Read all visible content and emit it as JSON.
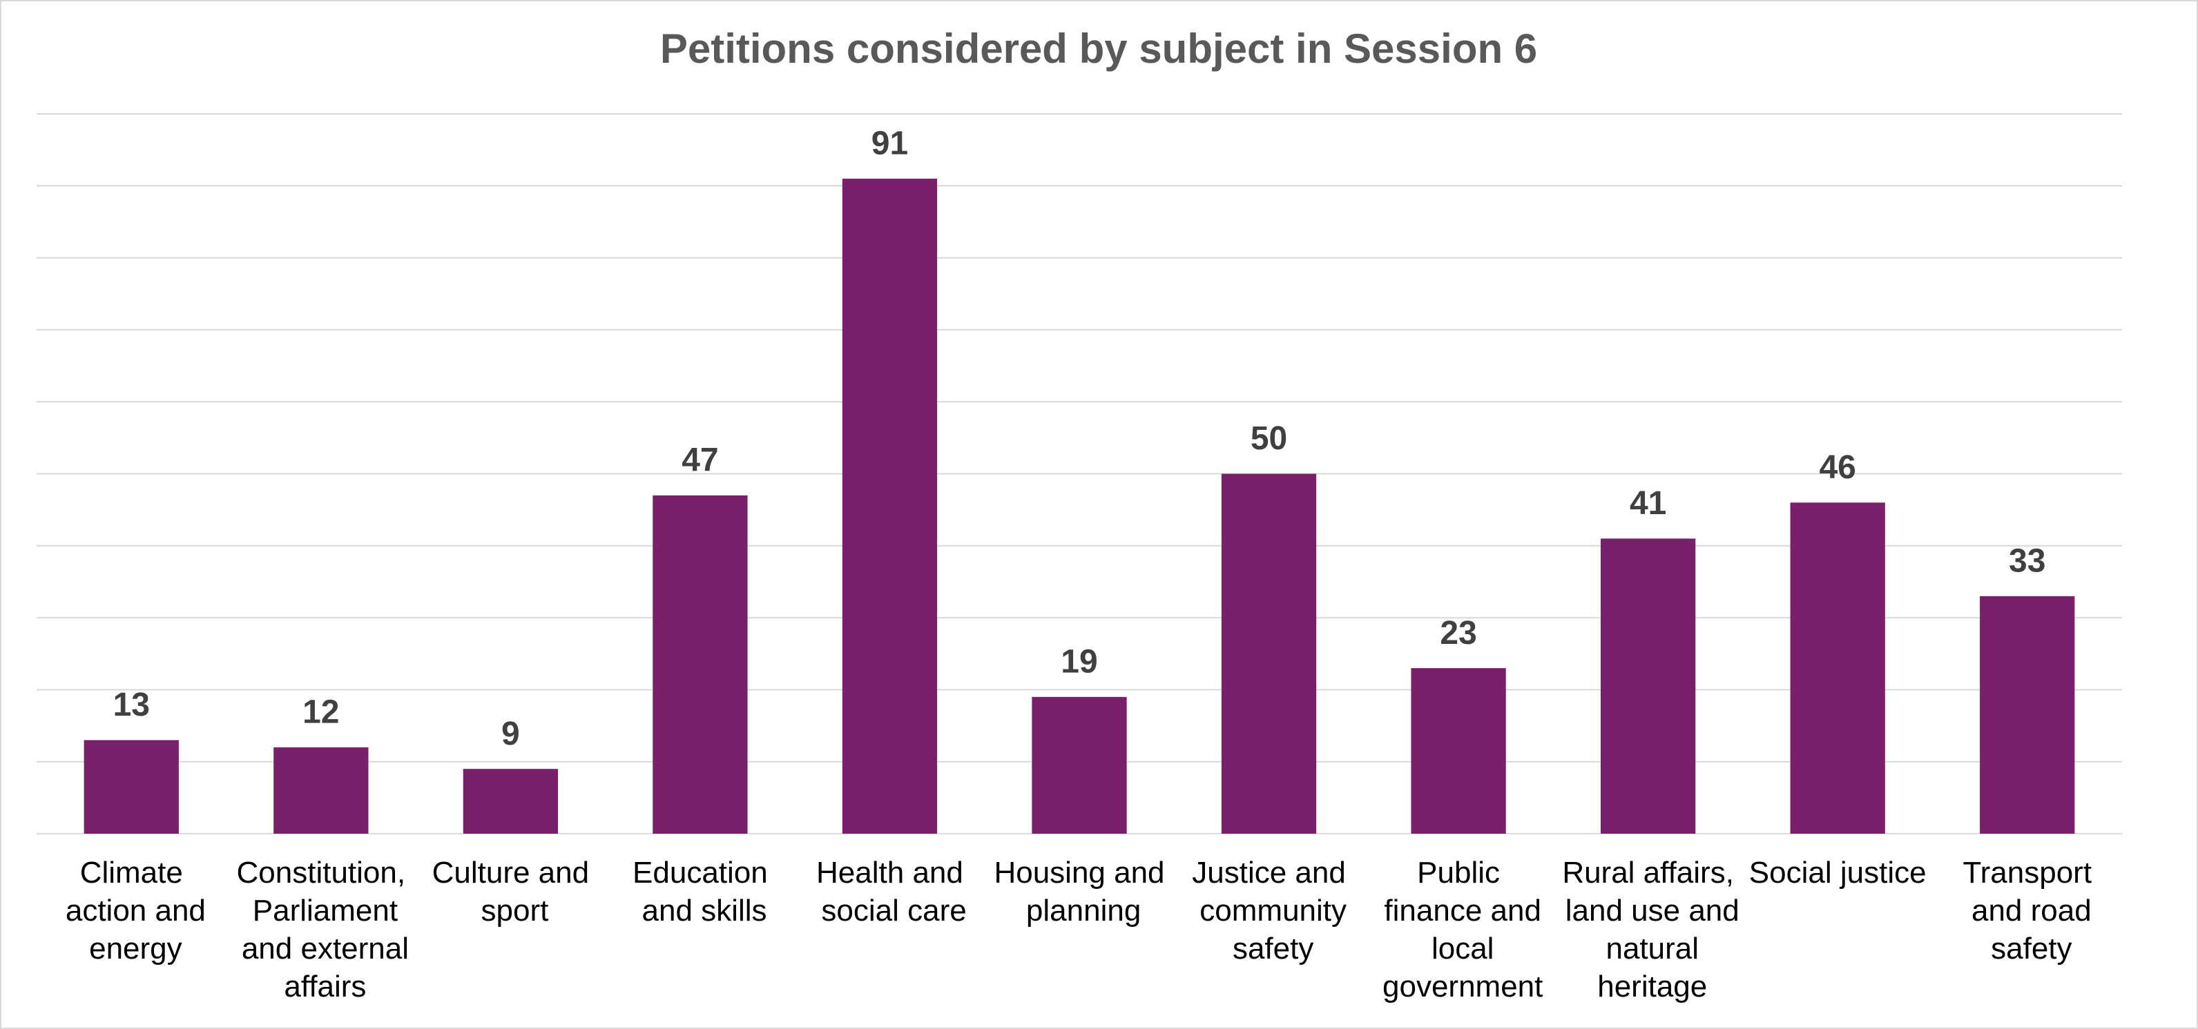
{
  "chart_data": {
    "type": "bar",
    "title": "Petitions considered by subject in Session 6",
    "categories": [
      "Climate action and energy",
      "Constitution, Parliament and external affairs",
      "Culture and sport",
      "Education and skills",
      "Health and social care",
      "Housing and planning",
      "Justice and community safety",
      "Public finance and local government",
      "Rural affairs, land use and natural heritage",
      "Social justice",
      "Transport and road safety"
    ],
    "values": [
      13,
      12,
      9,
      47,
      91,
      19,
      50,
      23,
      41,
      46,
      33
    ],
    "color": "#7a1f6b",
    "ylim": [
      0,
      100
    ],
    "yticks": [
      0,
      10,
      20,
      30,
      40,
      50,
      60,
      70,
      80,
      90,
      100
    ],
    "grid": true
  }
}
